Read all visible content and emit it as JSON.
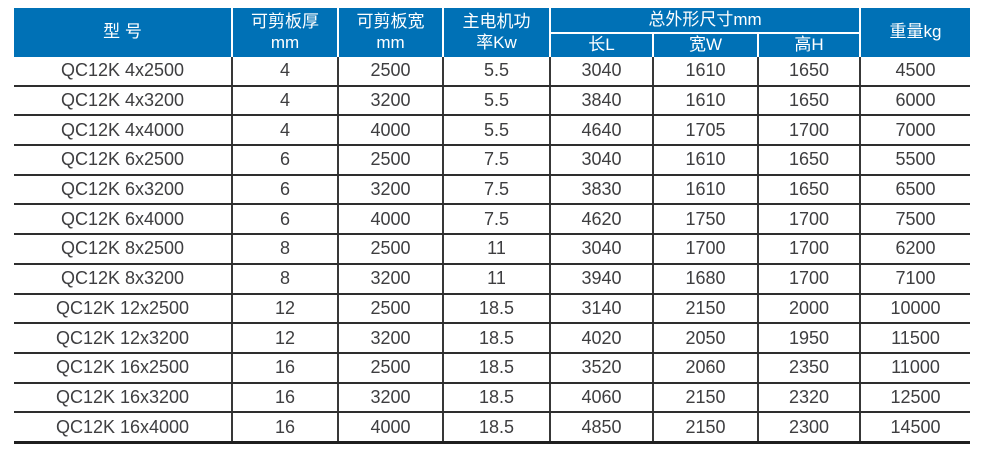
{
  "colors": {
    "header_bg": "#0071b6",
    "header_text": "#ffffff",
    "body_text": "#3e3e40",
    "grid_line": "#2e2e2e"
  },
  "table": {
    "header": {
      "model": "型 号",
      "thickness_line1": "可剪板厚",
      "thickness_line2": "mm",
      "width_line1": "可剪板宽",
      "width_line2": "mm",
      "power_line1": "主电机功",
      "power_line2": "率Kw",
      "dimensions_group": "总外形尺寸mm",
      "dim_length": "长L",
      "dim_width": "宽W",
      "dim_height": "高H",
      "weight": "重量kg"
    },
    "rows": [
      [
        "QC12K 4x2500",
        "4",
        "2500",
        "5.5",
        "3040",
        "1610",
        "1650",
        "4500"
      ],
      [
        "QC12K 4x3200",
        "4",
        "3200",
        "5.5",
        "3840",
        "1610",
        "1650",
        "6000"
      ],
      [
        "QC12K 4x4000",
        "4",
        "4000",
        "5.5",
        "4640",
        "1705",
        "1700",
        "7000"
      ],
      [
        "QC12K 6x2500",
        "6",
        "2500",
        "7.5",
        "3040",
        "1610",
        "1650",
        "5500"
      ],
      [
        "QC12K 6x3200",
        "6",
        "3200",
        "7.5",
        "3830",
        "1610",
        "1650",
        "6500"
      ],
      [
        "QC12K 6x4000",
        "6",
        "4000",
        "7.5",
        "4620",
        "1750",
        "1700",
        "7500"
      ],
      [
        "QC12K 8x2500",
        "8",
        "2500",
        "11",
        "3040",
        "1700",
        "1700",
        "6200"
      ],
      [
        "QC12K 8x3200",
        "8",
        "3200",
        "11",
        "3940",
        "1680",
        "1700",
        "7100"
      ],
      [
        "QC12K 12x2500",
        "12",
        "2500",
        "18.5",
        "3140",
        "2150",
        "2000",
        "10000"
      ],
      [
        "QC12K 12x3200",
        "12",
        "3200",
        "18.5",
        "4020",
        "2050",
        "1950",
        "11500"
      ],
      [
        "QC12K 16x2500",
        "16",
        "2500",
        "18.5",
        "3520",
        "2060",
        "2350",
        "11000"
      ],
      [
        "QC12K 16x3200",
        "16",
        "3200",
        "18.5",
        "4060",
        "2150",
        "2320",
        "12500"
      ],
      [
        "QC12K 16x4000",
        "16",
        "4000",
        "18.5",
        "4850",
        "2150",
        "2300",
        "14500"
      ]
    ]
  },
  "chart_data": {
    "type": "table",
    "title": "",
    "column_groups": [
      {
        "label": "总外形尺寸mm",
        "spans": [
          "长L",
          "宽W",
          "高H"
        ]
      }
    ],
    "columns": [
      "型 号",
      "可剪板厚 mm",
      "可剪板宽 mm",
      "主电机功率Kw",
      "长L",
      "宽W",
      "高H",
      "重量kg"
    ],
    "rows": [
      [
        "QC12K 4x2500",
        4,
        2500,
        5.5,
        3040,
        1610,
        1650,
        4500
      ],
      [
        "QC12K 4x3200",
        4,
        3200,
        5.5,
        3840,
        1610,
        1650,
        6000
      ],
      [
        "QC12K 4x4000",
        4,
        4000,
        5.5,
        4640,
        1705,
        1700,
        7000
      ],
      [
        "QC12K 6x2500",
        6,
        2500,
        7.5,
        3040,
        1610,
        1650,
        5500
      ],
      [
        "QC12K 6x3200",
        6,
        3200,
        7.5,
        3830,
        1610,
        1650,
        6500
      ],
      [
        "QC12K 6x4000",
        6,
        4000,
        7.5,
        4620,
        1750,
        1700,
        7500
      ],
      [
        "QC12K 8x2500",
        8,
        2500,
        11,
        3040,
        1700,
        1700,
        6200
      ],
      [
        "QC12K 8x3200",
        8,
        3200,
        11,
        3940,
        1680,
        1700,
        7100
      ],
      [
        "QC12K 12x2500",
        12,
        2500,
        18.5,
        3140,
        2150,
        2000,
        10000
      ],
      [
        "QC12K 12x3200",
        12,
        3200,
        18.5,
        4020,
        2050,
        1950,
        11500
      ],
      [
        "QC12K 16x2500",
        16,
        2500,
        18.5,
        3520,
        2060,
        2350,
        11000
      ],
      [
        "QC12K 16x3200",
        16,
        3200,
        18.5,
        4060,
        2150,
        2320,
        12500
      ],
      [
        "QC12K 16x4000",
        16,
        4000,
        18.5,
        4850,
        2150,
        2300,
        14500
      ]
    ]
  }
}
